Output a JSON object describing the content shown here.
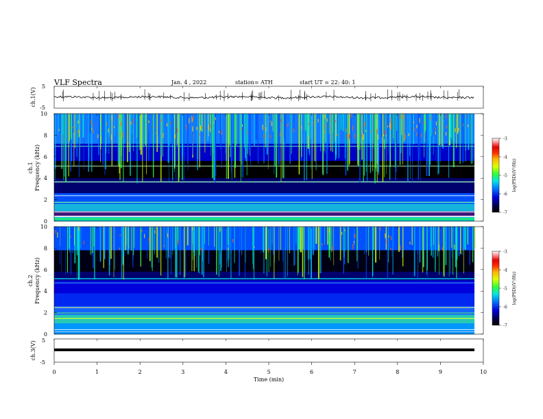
{
  "header": {
    "title": "VLF  Spectra",
    "date": "Jan. 4 , 2022",
    "station": "station= ATH",
    "start": "start  UT  =   22: 40: 1"
  },
  "chart_data": [
    {
      "type": "line",
      "panel": "ch1-waveform",
      "ylabel": "ch.1(V)",
      "ylim": [
        -5,
        5
      ],
      "yticks": [
        "5",
        "-5"
      ],
      "color": "#000000"
    },
    {
      "type": "heatmap",
      "panel": "ch1-spectrogram",
      "ylabel": "ch.1\nFrequency  (kHz)",
      "ylim": [
        0,
        10
      ],
      "yticks": [
        "0",
        "2",
        "4",
        "6",
        "8",
        "10"
      ],
      "colorbar": {
        "label": "log(PSD)(V²/Hz)",
        "ticks": [
          "-3",
          "-4",
          "-5",
          "-6",
          "-7"
        ],
        "range": [
          -7,
          -3
        ]
      }
    },
    {
      "type": "heatmap",
      "panel": "ch2-spectrogram",
      "ylabel": "ch.2\nFrequency  (kHz)",
      "ylim": [
        0,
        10
      ],
      "yticks": [
        "0",
        "2",
        "4",
        "6",
        "8",
        "10"
      ],
      "colorbar": {
        "label": "log(PSD)(V²/Hz)",
        "ticks": [
          "-3",
          "-4",
          "-5",
          "-6",
          "-7"
        ],
        "range": [
          -7,
          -3
        ]
      }
    },
    {
      "type": "line",
      "panel": "ch3-waveform",
      "ylabel": "ch.3(V)",
      "ylim": [
        -5,
        5
      ],
      "yticks": [
        "5",
        "-5"
      ],
      "color": "#000000"
    }
  ],
  "xaxis": {
    "label": "Time  (min)",
    "range": [
      0,
      10
    ],
    "ticks": [
      "0",
      "1",
      "2",
      "3",
      "4",
      "5",
      "6",
      "7",
      "8",
      "9",
      "10"
    ]
  },
  "colormap": [
    "#000000",
    "#00005a",
    "#0000c8",
    "#0050ff",
    "#00b4ff",
    "#00f0c8",
    "#32ff50",
    "#c8ff00",
    "#ffd200",
    "#ff6400",
    "#dc0000",
    "#ff8c8c",
    "#ffffff"
  ]
}
